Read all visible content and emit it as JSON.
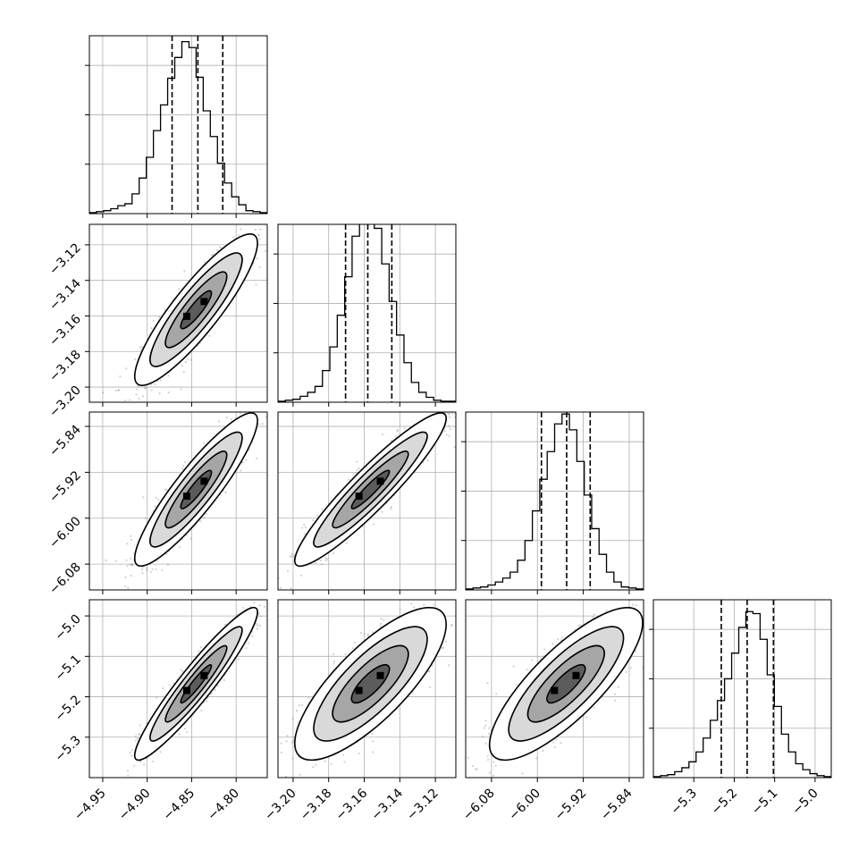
{
  "chart_data": {
    "type": "corner",
    "n_params": 4,
    "grid": true,
    "quantile_lines": "dashed",
    "params": [
      {
        "range": [
          -4.965,
          -4.765
        ],
        "ticks": [
          -4.95,
          -4.9,
          -4.85,
          -4.8
        ],
        "tick_labels": [
          "−4.95",
          "−4.90",
          "−4.85",
          "−4.80"
        ],
        "quantiles": [
          -4.872,
          -4.843,
          -4.815
        ],
        "hist": [
          1,
          2,
          3,
          5,
          8,
          10,
          20,
          36,
          57,
          84,
          110,
          137,
          158,
          174,
          168,
          138,
          104,
          78,
          51,
          31,
          17,
          9,
          3,
          2,
          1
        ],
        "hist_ticks": [
          50,
          100,
          150
        ]
      },
      {
        "range": [
          -3.2085,
          -3.1085
        ],
        "ticks": [
          -3.2,
          -3.18,
          -3.16,
          -3.14,
          -3.12
        ],
        "tick_labels": [
          "−3.20",
          "−3.18",
          "−3.16",
          "−3.14",
          "−3.12"
        ],
        "quantiles": [
          -3.1705,
          -3.158,
          -3.1445
        ],
        "hist": [
          1,
          2,
          3,
          6,
          10,
          16,
          32,
          56,
          88,
          127,
          168,
          192,
          196,
          176,
          140,
          102,
          68,
          40,
          20,
          10,
          5,
          2,
          1,
          1
        ],
        "hist_ticks": [
          50,
          100,
          150
        ]
      },
      {
        "range": [
          -6.125,
          -5.815
        ],
        "ticks": [
          -6.08,
          -6.0,
          -5.92,
          -5.84
        ],
        "tick_labels": [
          "−6.08",
          "−6.00",
          "−5.92",
          "−5.84"
        ],
        "quantiles": [
          -5.993,
          -5.949,
          -5.908
        ],
        "hist": [
          1,
          2,
          3,
          5,
          8,
          12,
          18,
          30,
          50,
          80,
          112,
          140,
          168,
          178,
          162,
          130,
          96,
          62,
          36,
          18,
          8,
          3,
          2,
          1
        ],
        "hist_ticks": [
          50,
          100,
          150
        ]
      },
      {
        "range": [
          -5.4,
          -4.96
        ],
        "ticks": [
          -5.3,
          -5.2,
          -5.1,
          -5.0
        ],
        "tick_labels": [
          "−5.3",
          "−5.2",
          "−5.1",
          "−5.0"
        ],
        "quantiles": [
          -5.232,
          -5.168,
          -5.103
        ],
        "hist": [
          1,
          2,
          3,
          6,
          10,
          16,
          26,
          40,
          58,
          78,
          100,
          126,
          152,
          168,
          166,
          140,
          104,
          72,
          44,
          26,
          14,
          8,
          4,
          2,
          1
        ],
        "hist_ticks": [
          50,
          100,
          150
        ]
      }
    ],
    "pairs": [
      {
        "x": 0,
        "y": 1,
        "center": [
          -4.845,
          -3.1565
        ],
        "sd": [
          0.03,
          0.0185
        ],
        "corr": 0.88
      },
      {
        "x": 0,
        "y": 2,
        "center": [
          -4.845,
          -5.95
        ],
        "sd": [
          0.03,
          0.058
        ],
        "corr": 0.9
      },
      {
        "x": 1,
        "y": 2,
        "center": [
          -3.1565,
          -5.95
        ],
        "sd": [
          0.0185,
          0.058
        ],
        "corr": 0.93
      },
      {
        "x": 0,
        "y": 3,
        "center": [
          -4.845,
          -5.168
        ],
        "sd": [
          0.03,
          0.082
        ],
        "corr": 0.94
      },
      {
        "x": 1,
        "y": 3,
        "center": [
          -3.1565,
          -5.168
        ],
        "sd": [
          0.0185,
          0.082
        ],
        "corr": 0.78
      },
      {
        "x": 2,
        "y": 3,
        "center": [
          -5.95,
          -5.168
        ],
        "sd": [
          0.058,
          0.082
        ],
        "corr": 0.8
      }
    ],
    "contour_sigmas": [
      0.5,
      1.0,
      1.5,
      2.0
    ]
  }
}
